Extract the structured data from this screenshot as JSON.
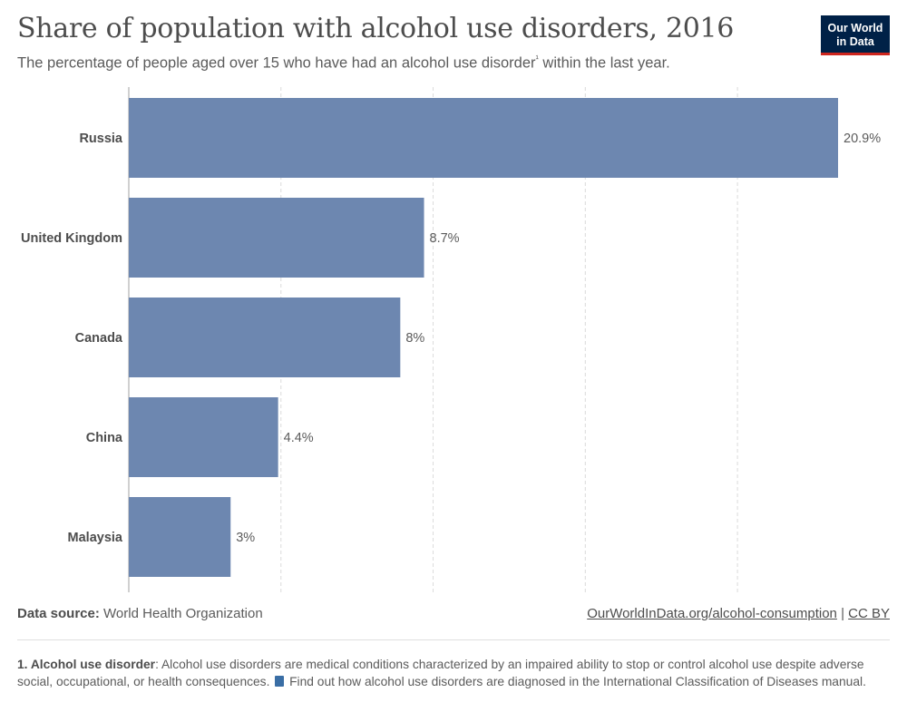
{
  "header": {
    "title": "Share of population with alcohol use disorders, 2016",
    "subtitle_main": "The percentage of people aged over 15 who have had an alcohol use disorder",
    "subtitle_sup": "¹",
    "subtitle_end": " within the last year.",
    "logo_line1": "Our World",
    "logo_line2": "in Data"
  },
  "chart_data": {
    "type": "bar",
    "orientation": "horizontal",
    "categories": [
      "Russia",
      "United Kingdom",
      "Canada",
      "China",
      "Malaysia"
    ],
    "values": [
      20.9,
      8.7,
      8,
      4.4,
      3
    ],
    "value_labels": [
      "20.9%",
      "8.7%",
      "8%",
      "4.4%",
      "3%"
    ],
    "xlim": [
      0,
      21
    ],
    "grid_ticks": [
      0,
      5,
      10,
      15,
      20
    ],
    "bar_color": "#6d87b0",
    "grid": "dashed vertical"
  },
  "footer": {
    "source_key": "Data source:",
    "source_value": "World Health Organization",
    "link_text": "OurWorldInData.org/alcohol-consumption",
    "separator": "|",
    "license": "CC BY"
  },
  "note": {
    "term": "1. Alcohol use disorder",
    "text": ": Alcohol use disorders are medical conditions characterized by an impaired ability to stop or control alcohol use despite adverse social, occupational, or health consequences. ",
    "icon": "book-icon",
    "link_text": "Find out how alcohol use disorders are diagnosed in the International Classification of Diseases manual."
  }
}
